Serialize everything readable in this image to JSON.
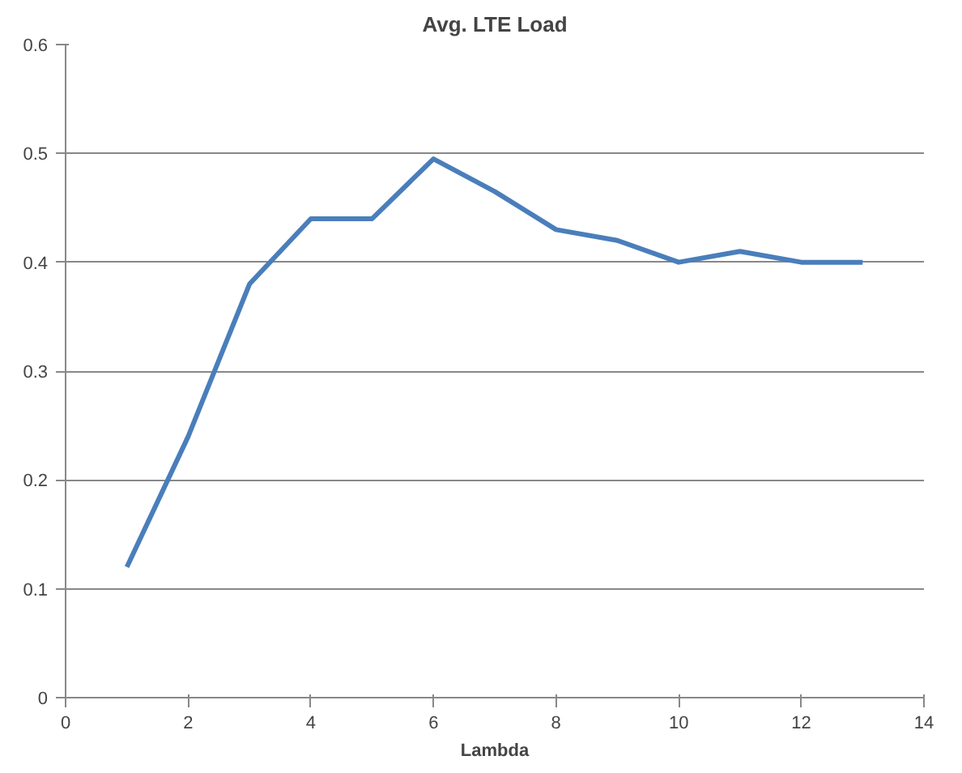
{
  "chart_data": {
    "type": "line",
    "title": "Avg. LTE Load",
    "xlabel": "Lambda",
    "x": [
      1,
      2,
      3,
      4,
      5,
      6,
      7,
      8,
      9,
      10,
      11,
      12,
      13
    ],
    "series": [
      {
        "color": "#4a7ebb",
        "values": [
          0.12,
          0.24,
          0.38,
          0.44,
          0.44,
          0.495,
          0.465,
          0.43,
          0.42,
          0.4,
          0.41,
          0.4,
          0.4
        ]
      }
    ],
    "xlim": [
      0,
      14
    ],
    "xticks": [
      0,
      2,
      4,
      6,
      8,
      10,
      12,
      14
    ],
    "ylim": [
      0,
      0.6
    ],
    "yticks": [
      0,
      0.1,
      0.2,
      0.3,
      0.4,
      0.5,
      0.6
    ],
    "grid": "y",
    "marker": "none",
    "line_style": "solid"
  }
}
